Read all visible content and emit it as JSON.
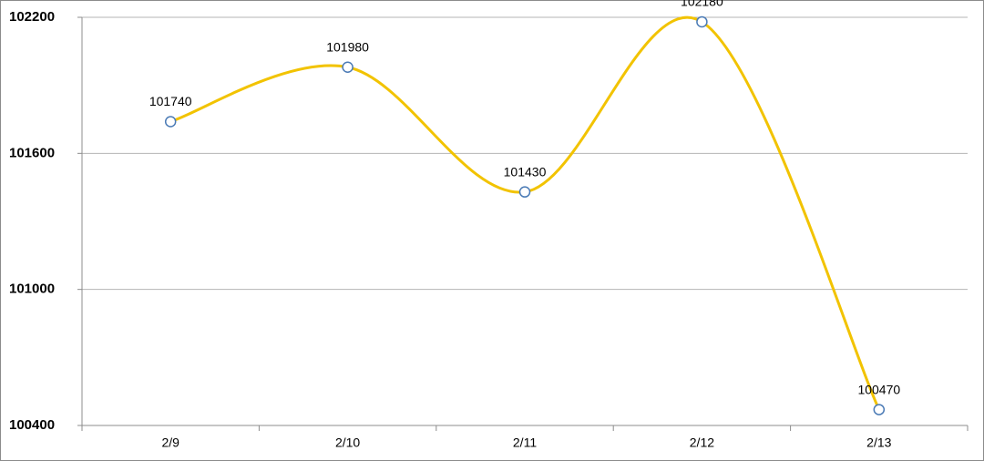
{
  "chart_data": {
    "type": "line",
    "categories": [
      "2/9",
      "2/10",
      "2/11",
      "2/12",
      "2/13"
    ],
    "values": [
      101740,
      101980,
      101430,
      102180,
      100470
    ],
    "color": "#f2c300",
    "marker_color": "#4a7ab5",
    "ylim": [
      100400,
      102200
    ],
    "yticks": [
      100400,
      101000,
      101600,
      102200
    ],
    "grid": true,
    "smooth": true
  }
}
